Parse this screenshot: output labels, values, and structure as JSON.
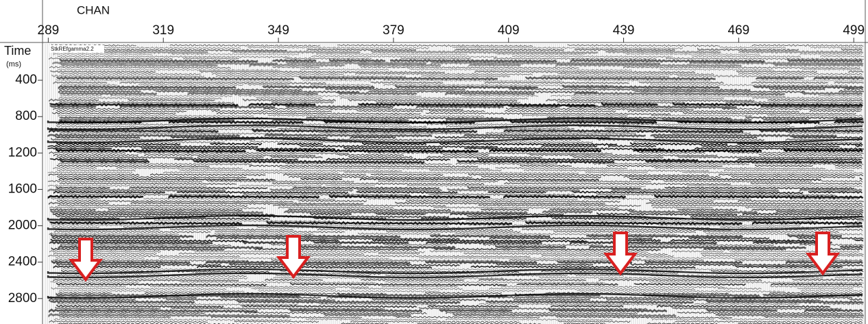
{
  "chart_data": {
    "type": "seismic",
    "x_label": "CHAN",
    "y_label": "Time",
    "y_unit": "(ms)",
    "panel_label": "StkREfgamma2.2",
    "xlim": [
      287.5,
      502
    ],
    "xticks": [
      289,
      319,
      349,
      379,
      409,
      439,
      469,
      499
    ],
    "ylim": [
      0,
      3080
    ],
    "yticks": [
      400,
      800,
      1200,
      1600,
      2000,
      2400,
      2800
    ]
  }
}
